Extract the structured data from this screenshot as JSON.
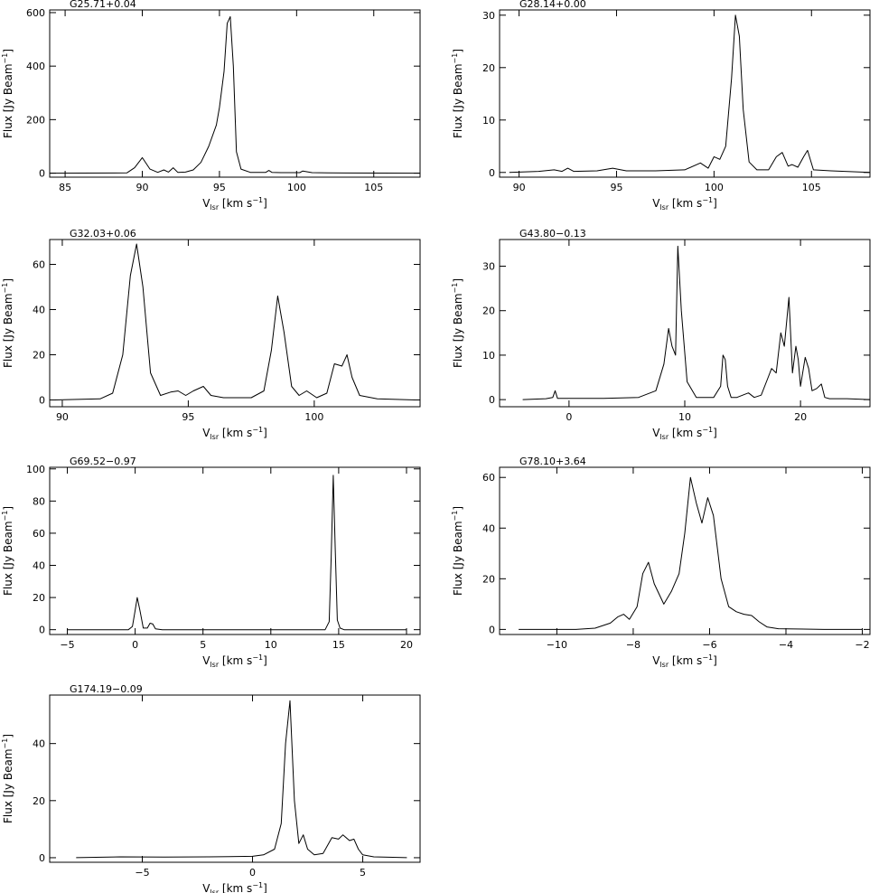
{
  "chart_data": [
    {
      "type": "line",
      "title": "G25.71+0.04",
      "xlabel": "V",
      "xlabel_sub": "lsr",
      "xlabel_unit": " [km s",
      "xlabel_sup": "−1",
      "xlabel_end": "]",
      "ylabel": "Flux [Jy Beam",
      "ylabel_sup": "−1",
      "ylabel_end": "]",
      "xlim": [
        84,
        108
      ],
      "ylim": [
        -15,
        610
      ],
      "xticks": [
        85,
        90,
        95,
        100,
        105
      ],
      "xtick_labels": [
        "85",
        "90",
        "95",
        "100",
        "105"
      ],
      "yticks": [
        0,
        200,
        400,
        600
      ],
      "ytick_labels": [
        "0",
        "200",
        "400",
        "600"
      ],
      "series": [
        {
          "x": [
            84,
            89.0,
            89.5,
            90.0,
            90.5,
            91.0,
            91.4,
            91.7,
            92.0,
            92.3,
            92.8,
            93.3,
            93.8,
            94.3,
            94.8,
            95.0,
            95.3,
            95.5,
            95.7,
            95.9,
            96.1,
            96.4,
            97.0,
            98.0,
            98.2,
            98.4,
            99.0,
            100.2,
            100.4,
            101,
            102,
            108
          ],
          "y": [
            0,
            1,
            20,
            58,
            15,
            3,
            12,
            4,
            20,
            3,
            4,
            12,
            40,
            100,
            180,
            245,
            380,
            560,
            585,
            400,
            80,
            15,
            3,
            3,
            10,
            3,
            2,
            2,
            8,
            2,
            1,
            0
          ]
        }
      ]
    },
    {
      "type": "line",
      "title": "G28.14+0.00",
      "xlabel": "V",
      "xlabel_sub": "lsr",
      "xlabel_unit": " [km s",
      "xlabel_sup": "−1",
      "xlabel_end": "]",
      "ylabel": "Flux [Jy Beam",
      "ylabel_sup": "−1",
      "ylabel_end": "]",
      "xlim": [
        89,
        108
      ],
      "ylim": [
        -0.9,
        31
      ],
      "xticks": [
        90,
        95,
        100,
        105
      ],
      "xtick_labels": [
        "90",
        "95",
        "100",
        "105"
      ],
      "yticks": [
        0,
        10,
        20,
        30
      ],
      "ytick_labels": [
        "0",
        "10",
        "20",
        "30"
      ],
      "series": [
        {
          "x": [
            89.5,
            91,
            91.8,
            92.2,
            92.5,
            92.8,
            94,
            94.8,
            95.5,
            97,
            98.5,
            99.3,
            99.7,
            100.0,
            100.3,
            100.6,
            100.9,
            101.1,
            101.3,
            101.5,
            101.8,
            102.2,
            102.8,
            103.2,
            103.5,
            103.8,
            104.0,
            104.3,
            104.6,
            104.8,
            105.1,
            106,
            108
          ],
          "y": [
            0,
            0.2,
            0.5,
            0.2,
            0.8,
            0.2,
            0.3,
            0.8,
            0.3,
            0.3,
            0.5,
            1.8,
            0.8,
            3,
            2.5,
            5,
            18,
            30,
            26,
            12,
            2,
            0.5,
            0.5,
            3,
            3.8,
            1.2,
            1.5,
            1,
            3,
            4.2,
            0.5,
            0.3,
            0
          ]
        }
      ]
    },
    {
      "type": "line",
      "title": "G32.03+0.06",
      "xlabel": "V",
      "xlabel_sub": "lsr",
      "xlabel_unit": " [km s",
      "xlabel_sup": "−1",
      "xlabel_end": "]",
      "ylabel": "Flux [Jy Beam",
      "ylabel_sup": "−1",
      "ylabel_end": "]",
      "xlim": [
        89.5,
        104.2
      ],
      "ylim": [
        -3,
        71
      ],
      "xticks": [
        90,
        95,
        100
      ],
      "xtick_labels": [
        "90",
        "95",
        "100"
      ],
      "yticks": [
        0,
        20,
        40,
        60
      ],
      "ytick_labels": [
        "0",
        "20",
        "40",
        "60"
      ],
      "series": [
        {
          "x": [
            89.7,
            91.5,
            92.0,
            92.4,
            92.7,
            92.95,
            93.2,
            93.5,
            93.9,
            94.3,
            94.6,
            94.9,
            95.2,
            95.6,
            95.9,
            96.4,
            97.5,
            98.0,
            98.3,
            98.55,
            98.8,
            99.1,
            99.4,
            99.7,
            100.1,
            100.5,
            100.8,
            101.1,
            101.3,
            101.5,
            101.8,
            102.5,
            104
          ],
          "y": [
            0,
            0.5,
            3,
            20,
            55,
            69,
            50,
            12,
            2,
            3.5,
            4,
            2,
            4,
            6,
            2,
            1,
            1,
            4,
            22,
            46,
            30,
            6,
            2,
            4,
            1,
            3,
            16,
            15,
            20,
            10,
            2,
            0.5,
            0
          ]
        }
      ]
    },
    {
      "type": "line",
      "title": "G43.80−0.13",
      "xlabel": "V",
      "xlabel_sub": "lsr",
      "xlabel_unit": " [km s",
      "xlabel_sup": "−1",
      "xlabel_end": "]",
      "ylabel": "Flux [Jy Beam",
      "ylabel_sup": "−1",
      "ylabel_end": "]",
      "xlim": [
        -6,
        26
      ],
      "ylim": [
        -1.6,
        36
      ],
      "xticks": [
        0,
        10,
        20
      ],
      "xtick_labels": [
        "0",
        "10",
        "20"
      ],
      "yticks": [
        0,
        10,
        20,
        30
      ],
      "ytick_labels": [
        "0",
        "10",
        "20",
        "30"
      ],
      "series": [
        {
          "x": [
            -4,
            -2,
            -1.4,
            -1.2,
            -1.0,
            0,
            3,
            6,
            7.5,
            8.2,
            8.6,
            8.9,
            9.2,
            9.4,
            9.7,
            10.2,
            11,
            12.5,
            13.1,
            13.3,
            13.5,
            13.7,
            14.0,
            14.5,
            15.5,
            16.0,
            16.6,
            17.2,
            17.5,
            17.9,
            18.3,
            18.6,
            19.0,
            19.3,
            19.6,
            19.8,
            20.0,
            20.4,
            20.7,
            21.0,
            21.4,
            21.8,
            22.1,
            22.5,
            24,
            26
          ],
          "y": [
            0,
            0.2,
            0.5,
            2,
            0.3,
            0.3,
            0.3,
            0.5,
            2,
            8,
            16,
            12,
            10,
            34.5,
            20,
            4,
            0.5,
            0.5,
            3,
            10,
            9,
            3,
            0.5,
            0.5,
            1.5,
            0.5,
            1,
            5,
            7,
            6,
            15,
            12,
            23,
            6,
            12,
            9,
            3,
            9.5,
            7,
            2,
            2.5,
            3.5,
            0.5,
            0.2,
            0.2,
            0
          ]
        }
      ]
    },
    {
      "type": "line",
      "title": "G69.52−0.97",
      "xlabel": "V",
      "xlabel_sub": "lsr",
      "xlabel_unit": " [km s",
      "xlabel_sup": "−1",
      "xlabel_end": "]",
      "ylabel": "Flux [Jy Beam",
      "ylabel_sup": "−1",
      "ylabel_end": "]",
      "xlim": [
        -6.3,
        21
      ],
      "ylim": [
        -3,
        101
      ],
      "xticks": [
        -5,
        0,
        5,
        10,
        15,
        20
      ],
      "xtick_labels": [
        "−5",
        "0",
        "5",
        "10",
        "15",
        "20"
      ],
      "yticks": [
        0,
        20,
        40,
        60,
        80,
        100
      ],
      "ytick_labels": [
        "0",
        "20",
        "40",
        "60",
        "80",
        "100"
      ],
      "series": [
        {
          "x": [
            -5,
            -0.5,
            -0.2,
            0.0,
            0.15,
            0.35,
            0.6,
            0.9,
            1.1,
            1.3,
            1.5,
            2,
            10,
            14.0,
            14.3,
            14.45,
            14.6,
            14.75,
            14.9,
            15.1,
            15.4,
            16,
            20
          ],
          "y": [
            0,
            0,
            2,
            12,
            20,
            12,
            1,
            1,
            4,
            3.5,
            0.5,
            0,
            0,
            0,
            5,
            45,
            96,
            50,
            6,
            1,
            0,
            0,
            0
          ]
        }
      ]
    },
    {
      "type": "line",
      "title": "G78.10+3.64",
      "xlabel": "V",
      "xlabel_sub": "lsr",
      "xlabel_unit": " [km s",
      "xlabel_sup": "−1",
      "xlabel_end": "]",
      "ylabel": "Flux [Jy Beam",
      "ylabel_sup": "−1",
      "ylabel_end": "]",
      "xlim": [
        -11.5,
        -1.8
      ],
      "ylim": [
        -2,
        64
      ],
      "xticks": [
        -10,
        -8,
        -6,
        -4,
        -2
      ],
      "xtick_labels": [
        "−10",
        "−8",
        "−6",
        "−4",
        "−2"
      ],
      "yticks": [
        0,
        20,
        40,
        60
      ],
      "ytick_labels": [
        "0",
        "20",
        "40",
        "60"
      ],
      "series": [
        {
          "x": [
            -11,
            -9.5,
            -9.0,
            -8.6,
            -8.4,
            -8.25,
            -8.1,
            -7.9,
            -7.75,
            -7.6,
            -7.45,
            -7.2,
            -7.0,
            -6.8,
            -6.65,
            -6.5,
            -6.35,
            -6.2,
            -6.05,
            -5.9,
            -5.7,
            -5.5,
            -5.3,
            -5.1,
            -4.9,
            -4.7,
            -4.5,
            -4.2,
            -3,
            -2
          ],
          "y": [
            0,
            0,
            0.5,
            2.5,
            5,
            6,
            4,
            9,
            22,
            26.5,
            18,
            10,
            15,
            22,
            38,
            60,
            50,
            42,
            52,
            45,
            20,
            9,
            7,
            6,
            5.5,
            3,
            1,
            0.3,
            0,
            0
          ]
        }
      ]
    },
    {
      "type": "line",
      "title": "G174.19−0.09",
      "xlabel": "V",
      "xlabel_sub": "lsr",
      "xlabel_unit": " [km s",
      "xlabel_sup": "−1",
      "xlabel_end": "]",
      "ylabel": "Flux [Jy Beam",
      "ylabel_sup": "−1",
      "ylabel_end": "]",
      "xlim": [
        -9.2,
        7.6
      ],
      "ylim": [
        -1.6,
        57
      ],
      "xticks": [
        -5,
        0,
        5
      ],
      "xtick_labels": [
        "−5",
        "0",
        "5"
      ],
      "yticks": [
        0,
        20,
        40
      ],
      "ytick_labels": [
        "0",
        "20",
        "40"
      ],
      "series": [
        {
          "x": [
            -8,
            -6,
            -4,
            -2,
            0,
            0.5,
            1.0,
            1.3,
            1.5,
            1.7,
            1.9,
            2.1,
            2.3,
            2.5,
            2.8,
            3.2,
            3.6,
            3.9,
            4.1,
            4.4,
            4.6,
            4.8,
            5.0,
            5.5,
            7
          ],
          "y": [
            0,
            0.3,
            0.2,
            0.3,
            0.5,
            1,
            3,
            12,
            40,
            55,
            20,
            5,
            8,
            3,
            1,
            1.5,
            7,
            6.5,
            8,
            6,
            6.5,
            3,
            1,
            0.3,
            0
          ]
        }
      ]
    }
  ]
}
